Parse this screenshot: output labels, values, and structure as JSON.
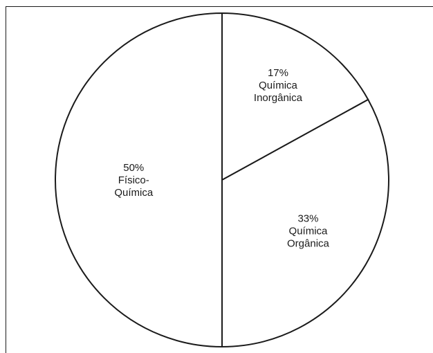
{
  "chart_data": {
    "type": "pie",
    "start_angle_deg": 0,
    "direction": "clockwise",
    "slices": [
      {
        "percent_label": "17%",
        "lines": [
          "Química",
          "Inorgânica"
        ],
        "value": 17
      },
      {
        "percent_label": "33%",
        "lines": [
          "Química",
          "Orgânica"
        ],
        "value": 33
      },
      {
        "percent_label": "50%",
        "lines": [
          "Físico-",
          "Química"
        ],
        "value": 50
      }
    ],
    "fill_color": "#ffffff",
    "stroke_color": "#1a1a1a"
  }
}
